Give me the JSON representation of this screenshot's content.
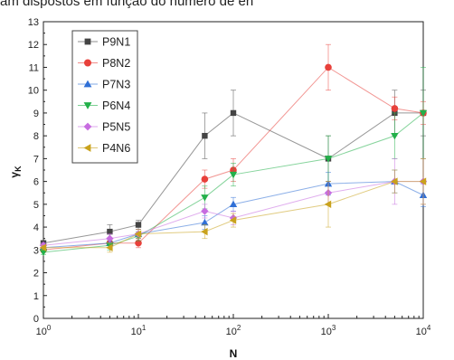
{
  "caption": "am dispostos em função do número de en",
  "chart_data": {
    "type": "line",
    "xscale": "log",
    "xlim": [
      1,
      10000
    ],
    "ylim": [
      0,
      13
    ],
    "x_ticks": [
      1,
      10,
      100,
      1000,
      10000
    ],
    "x_tick_labels": [
      {
        "base": "10",
        "exp": "0"
      },
      {
        "base": "10",
        "exp": "1"
      },
      {
        "base": "10",
        "exp": "2"
      },
      {
        "base": "10",
        "exp": "3"
      },
      {
        "base": "10",
        "exp": "4"
      }
    ],
    "y_ticks": [
      0,
      1,
      2,
      3,
      4,
      5,
      6,
      7,
      8,
      9,
      10,
      11,
      12,
      13
    ],
    "y_tick_labels": [
      "0",
      "1",
      "2",
      "3",
      "4",
      "5",
      "6",
      "7",
      "8",
      "9",
      "10",
      "11",
      "12",
      "13"
    ],
    "xlabel": "N",
    "ylabel": "γK",
    "ylabel_parts": {
      "main": "γ",
      "sub": "K"
    },
    "grid": false,
    "legend_position": "top-left",
    "x": [
      1,
      5,
      10,
      50,
      100,
      1000,
      5000,
      10000
    ],
    "series": [
      {
        "name": "P9N1",
        "color": "#444444",
        "marker": "square",
        "values": [
          3.3,
          3.8,
          4.1,
          8.0,
          9.0,
          7.0,
          9.0,
          9.0
        ],
        "errors": [
          0.1,
          0.3,
          0.2,
          1.0,
          1.0,
          1.0,
          1.0,
          1.0
        ]
      },
      {
        "name": "P8N2",
        "color": "#e8403a",
        "marker": "circle",
        "values": [
          3.0,
          3.3,
          3.3,
          6.1,
          6.5,
          11.0,
          9.2,
          9.0
        ],
        "errors": [
          0.1,
          0.2,
          0.2,
          0.4,
          0.5,
          1.0,
          0.5,
          0.5
        ]
      },
      {
        "name": "P7N3",
        "color": "#2f6fd6",
        "marker": "triangle-up",
        "values": [
          3.1,
          3.3,
          3.7,
          4.2,
          5.0,
          5.9,
          6.0,
          5.4
        ],
        "errors": [
          0.1,
          0.2,
          0.2,
          0.3,
          0.3,
          0.5,
          0.5,
          0.5
        ]
      },
      {
        "name": "P6N4",
        "color": "#23b04a",
        "marker": "triangle-down",
        "values": [
          2.9,
          3.2,
          3.6,
          5.3,
          6.3,
          7.0,
          8.0,
          9.0
        ],
        "errors": [
          0.1,
          0.2,
          0.2,
          0.5,
          0.5,
          1.0,
          1.0,
          2.0
        ]
      },
      {
        "name": "P5N5",
        "color": "#c76ce0",
        "marker": "diamond",
        "values": [
          3.2,
          3.5,
          3.7,
          4.7,
          4.4,
          5.5,
          6.0,
          6.0
        ],
        "errors": [
          0.1,
          0.2,
          0.2,
          0.3,
          0.3,
          0.5,
          1.0,
          1.0
        ]
      },
      {
        "name": "P4N6",
        "color": "#c9a21c",
        "marker": "triangle-left",
        "values": [
          3.1,
          3.1,
          3.7,
          3.8,
          4.3,
          5.0,
          6.0,
          6.0
        ],
        "errors": [
          0.1,
          0.2,
          0.2,
          0.3,
          0.3,
          1.0,
          0.5,
          1.0
        ]
      }
    ]
  }
}
